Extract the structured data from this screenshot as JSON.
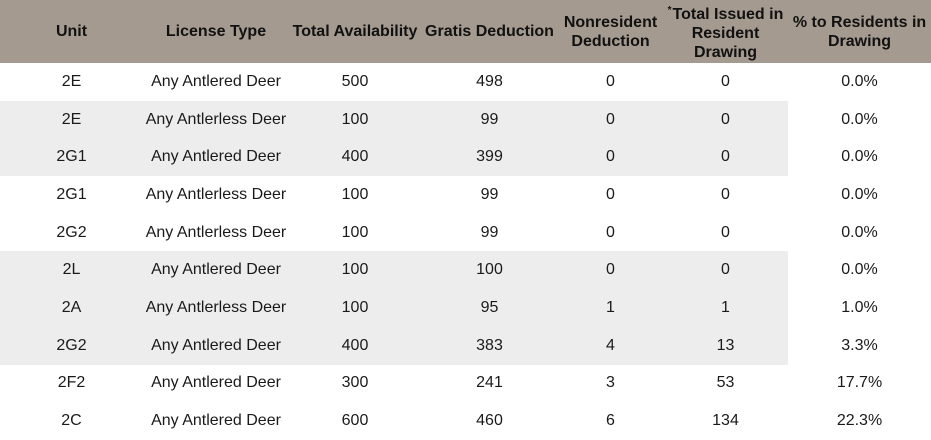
{
  "headers": [
    {
      "label": "Unit",
      "note": ""
    },
    {
      "label": "License Type",
      "note": ""
    },
    {
      "label": "Total Availability",
      "note": ""
    },
    {
      "label": "Gratis Deduction",
      "note": ""
    },
    {
      "label": "Nonresident Deduction",
      "note": ""
    },
    {
      "label": "Total Issued in Resident Drawing",
      "note": "*"
    },
    {
      "label": "% to Residents in Drawing",
      "note": ""
    }
  ],
  "rows": [
    [
      "2E",
      "Any Antlered Deer",
      "500",
      "498",
      "0",
      "0",
      "0.0%"
    ],
    [
      "2E",
      "Any Antlerless Deer",
      "100",
      "99",
      "0",
      "0",
      "0.0%"
    ],
    [
      "2G1",
      "Any Antlered Deer",
      "400",
      "399",
      "0",
      "0",
      "0.0%"
    ],
    [
      "2G1",
      "Any Antlerless Deer",
      "100",
      "99",
      "0",
      "0",
      "0.0%"
    ],
    [
      "2G2",
      "Any Antlerless Deer",
      "100",
      "99",
      "0",
      "0",
      "0.0%"
    ],
    [
      "2L",
      "Any Antlered Deer",
      "100",
      "100",
      "0",
      "0",
      "0.0%"
    ],
    [
      "2A",
      "Any Antlerless Deer",
      "100",
      "95",
      "1",
      "1",
      "1.0%"
    ],
    [
      "2G2",
      "Any Antlered Deer",
      "400",
      "383",
      "4",
      "13",
      "3.3%"
    ],
    [
      "2F2",
      "Any Antlered Deer",
      "300",
      "241",
      "3",
      "53",
      "17.7%"
    ],
    [
      "2C",
      "Any Antlered Deer",
      "600",
      "460",
      "6",
      "134",
      "22.3%"
    ]
  ]
}
